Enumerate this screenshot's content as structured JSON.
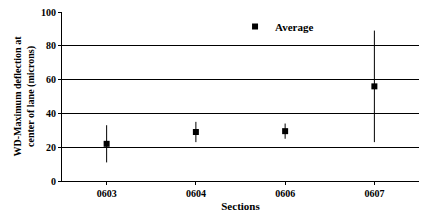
{
  "chart_data": {
    "type": "scatter",
    "x_label": "Sections",
    "y_label": "WD-Maximum deflection at\ncenter of lane (microns)",
    "categories": [
      "0603",
      "0604",
      "0606",
      "0607"
    ],
    "series": [
      {
        "name": "Average",
        "color": "#000000",
        "marker": "square",
        "values": [
          22,
          29,
          29.5,
          56
        ],
        "errors": [
          11,
          6,
          4.5,
          33
        ]
      }
    ],
    "ylim": [
      0,
      100
    ],
    "yticks": [
      0,
      20,
      40,
      60,
      80,
      100
    ],
    "grid": true,
    "legend": "top right"
  }
}
